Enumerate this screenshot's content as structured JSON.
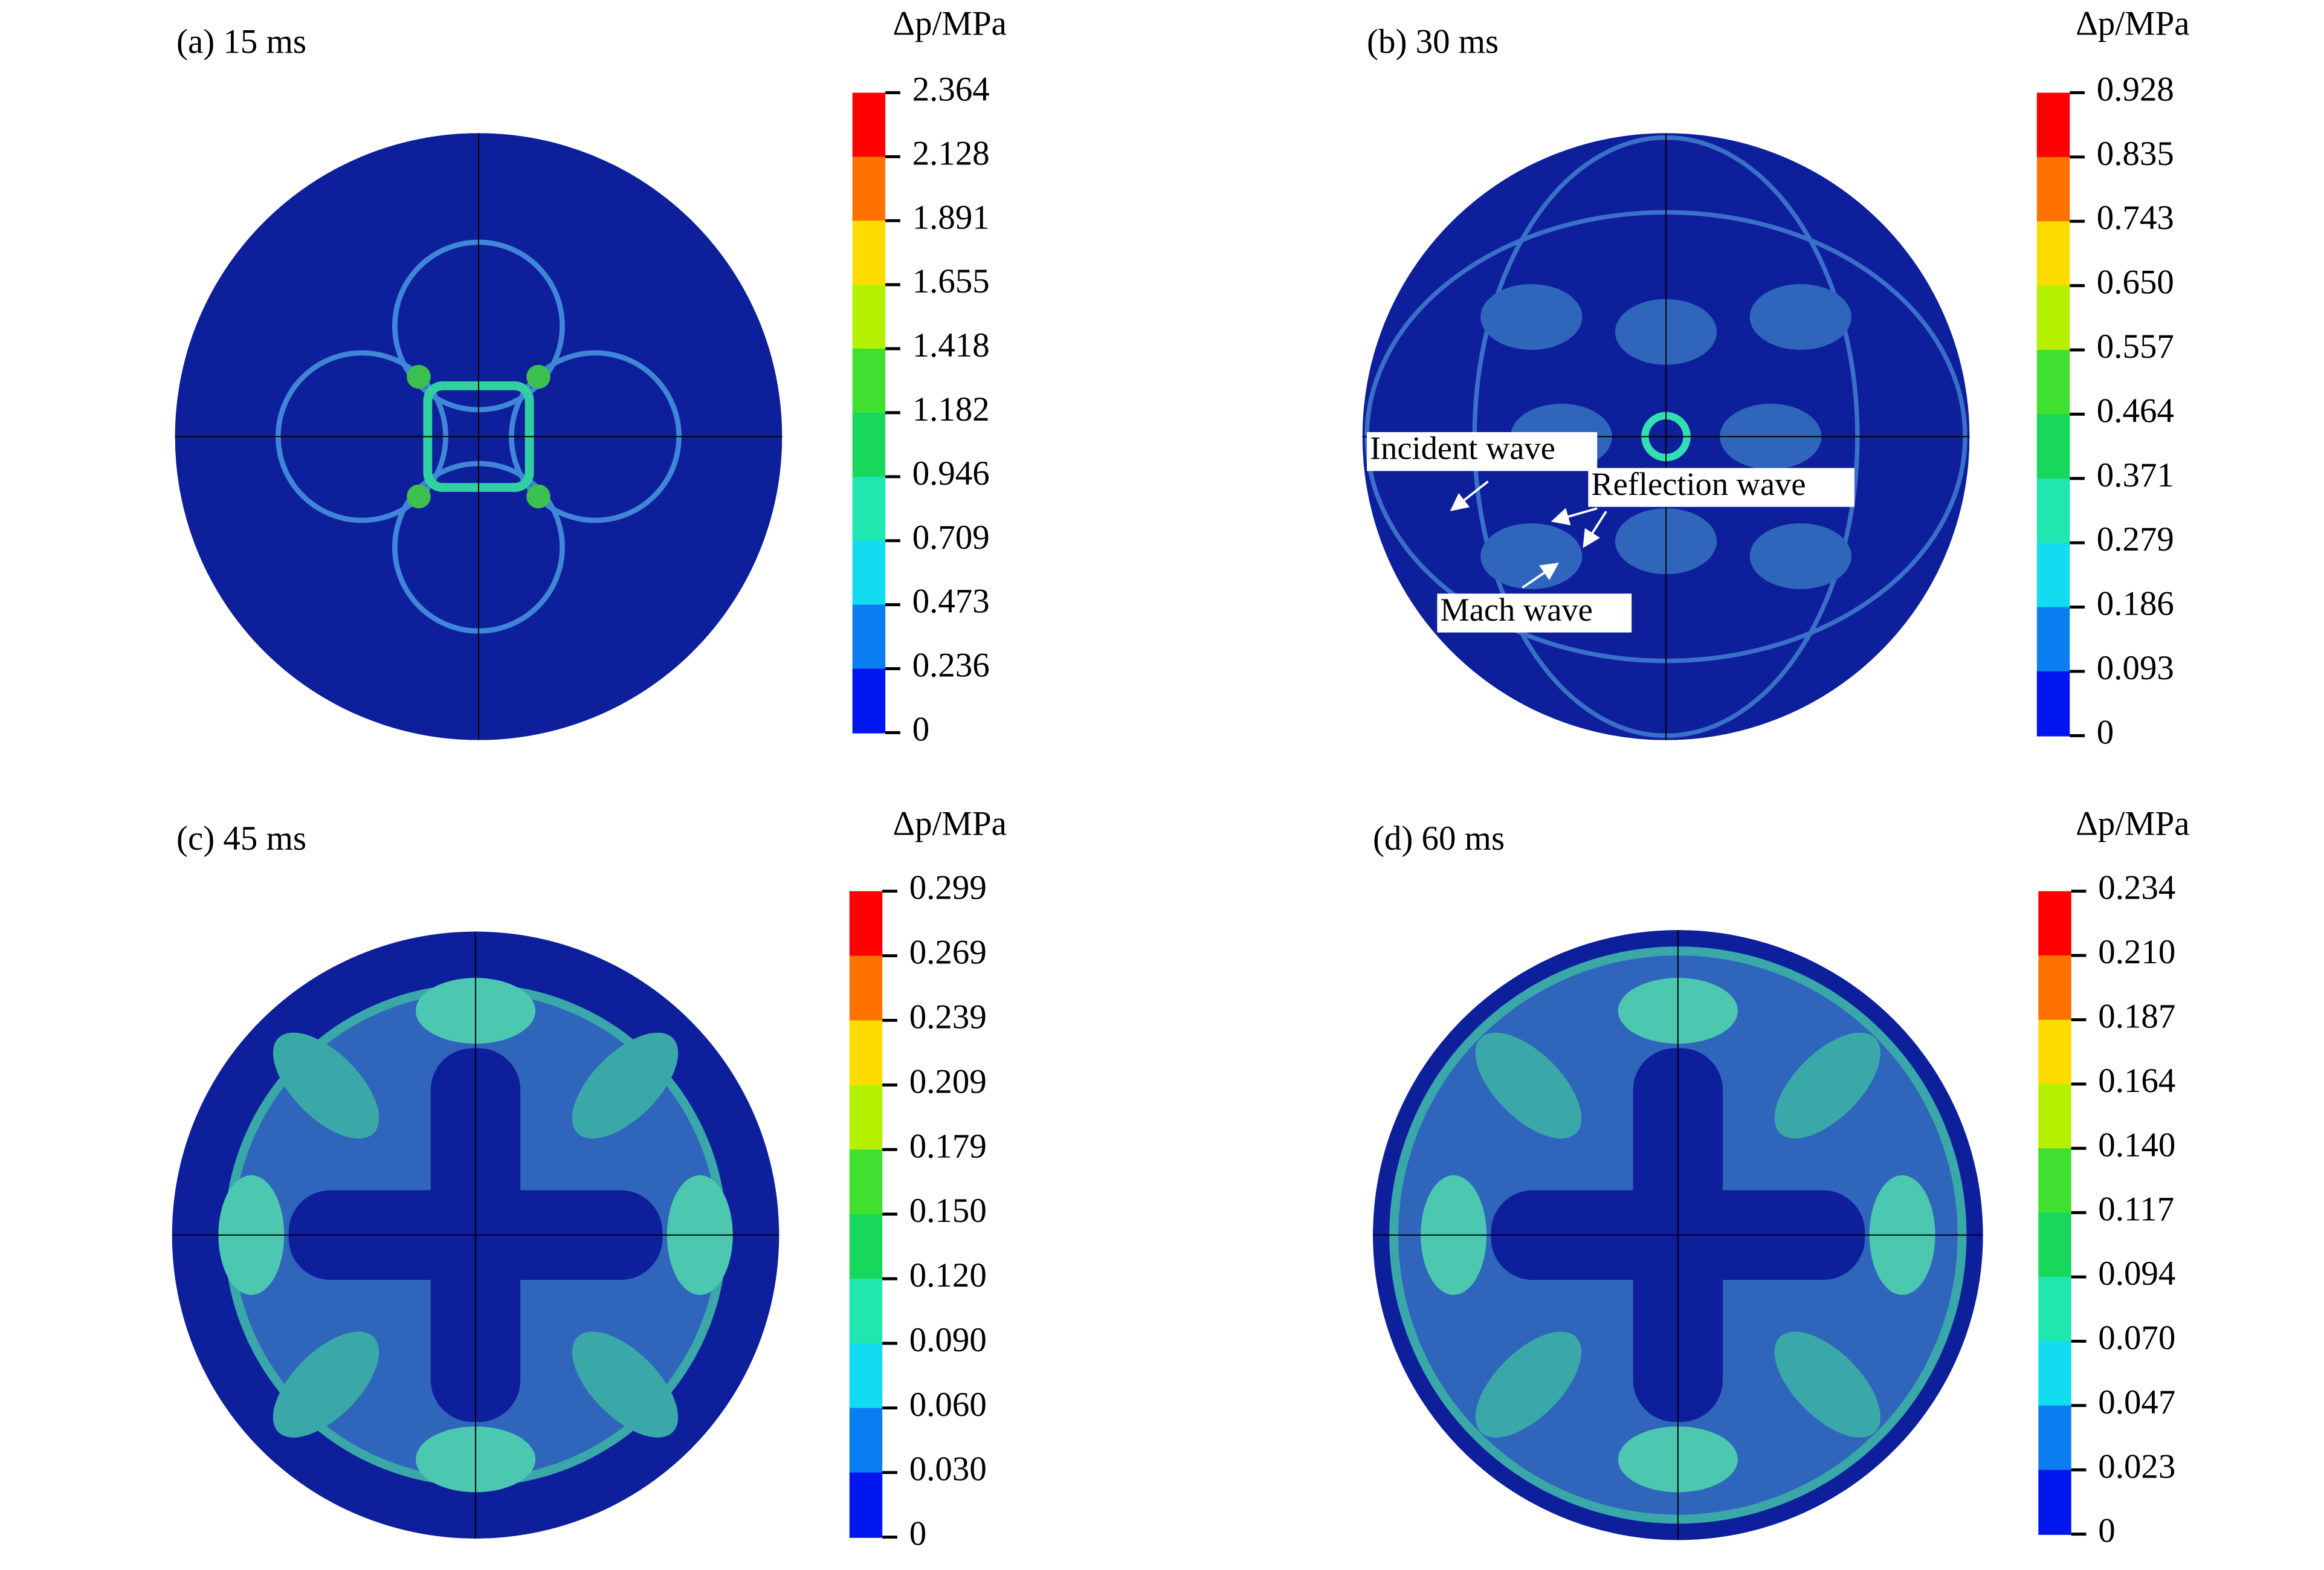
{
  "panels": [
    {
      "title": "(a) 15 ms",
      "unit": "Δp/MPa",
      "colorbar": [
        "2.364",
        "2.128",
        "1.891",
        "1.655",
        "1.418",
        "1.182",
        "0.946",
        "0.709",
        "0.473",
        "0.236",
        "0"
      ]
    },
    {
      "title": "(b) 30 ms",
      "unit": "Δp/MPa",
      "colorbar": [
        "0.928",
        "0.835",
        "0.743",
        "0.650",
        "0.557",
        "0.464",
        "0.371",
        "0.279",
        "0.186",
        "0.093",
        "0"
      ]
    },
    {
      "title": "(c) 45 ms",
      "unit": "Δp/MPa",
      "colorbar": [
        "0.299",
        "0.269",
        "0.239",
        "0.209",
        "0.179",
        "0.150",
        "0.120",
        "0.090",
        "0.060",
        "0.030",
        "0"
      ]
    },
    {
      "title": "(d) 60 ms",
      "unit": "Δp/MPa",
      "colorbar": [
        "0.234",
        "0.210",
        "0.187",
        "0.164",
        "0.140",
        "0.117",
        "0.094",
        "0.070",
        "0.047",
        "0.023",
        "0"
      ]
    }
  ],
  "annotations": {
    "incident": "Incident wave",
    "reflection": "Reflection wave",
    "mach": "Mach wave"
  }
}
